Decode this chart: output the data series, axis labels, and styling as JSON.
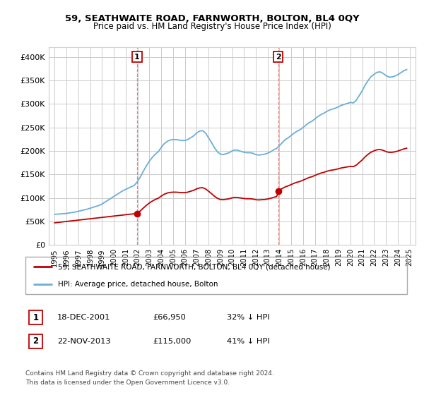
{
  "title": "59, SEATHWAITE ROAD, FARNWORTH, BOLTON, BL4 0QY",
  "subtitle": "Price paid vs. HM Land Registry's House Price Index (HPI)",
  "xlim_min": 1994.5,
  "xlim_max": 2025.5,
  "ylim_min": 0,
  "ylim_max": 420000,
  "yticks": [
    0,
    50000,
    100000,
    150000,
    200000,
    250000,
    300000,
    350000,
    400000
  ],
  "ytick_labels": [
    "£0",
    "£50K",
    "£100K",
    "£150K",
    "£200K",
    "£250K",
    "£300K",
    "£350K",
    "£400K"
  ],
  "xtick_years": [
    1995,
    1996,
    1997,
    1998,
    1999,
    2000,
    2001,
    2002,
    2003,
    2004,
    2005,
    2006,
    2007,
    2008,
    2009,
    2010,
    2011,
    2012,
    2013,
    2014,
    2015,
    2016,
    2017,
    2018,
    2019,
    2020,
    2021,
    2022,
    2023,
    2024,
    2025
  ],
  "hpi_color": "#6baed6",
  "price_color": "#c00000",
  "marker_color": "#c00000",
  "sale1_x": 2001.96,
  "sale1_y": 66950,
  "sale2_x": 2013.9,
  "sale2_y": 115000,
  "vline_color": "#e08080",
  "vline1_x": 2001.96,
  "vline2_x": 2013.9,
  "legend_line1": "59, SEATHWAITE ROAD, FARNWORTH, BOLTON, BL4 0QY (detached house)",
  "legend_line2": "HPI: Average price, detached house, Bolton",
  "table_row1": [
    "1",
    "18-DEC-2001",
    "£66,950",
    "32% ↓ HPI"
  ],
  "table_row2": [
    "2",
    "22-NOV-2013",
    "£115,000",
    "41% ↓ HPI"
  ],
  "footnote1": "Contains HM Land Registry data © Crown copyright and database right 2024.",
  "footnote2": "This data is licensed under the Open Government Licence v3.0.",
  "background_color": "#ffffff",
  "grid_color": "#cccccc",
  "ann_box_color": "#c00000"
}
